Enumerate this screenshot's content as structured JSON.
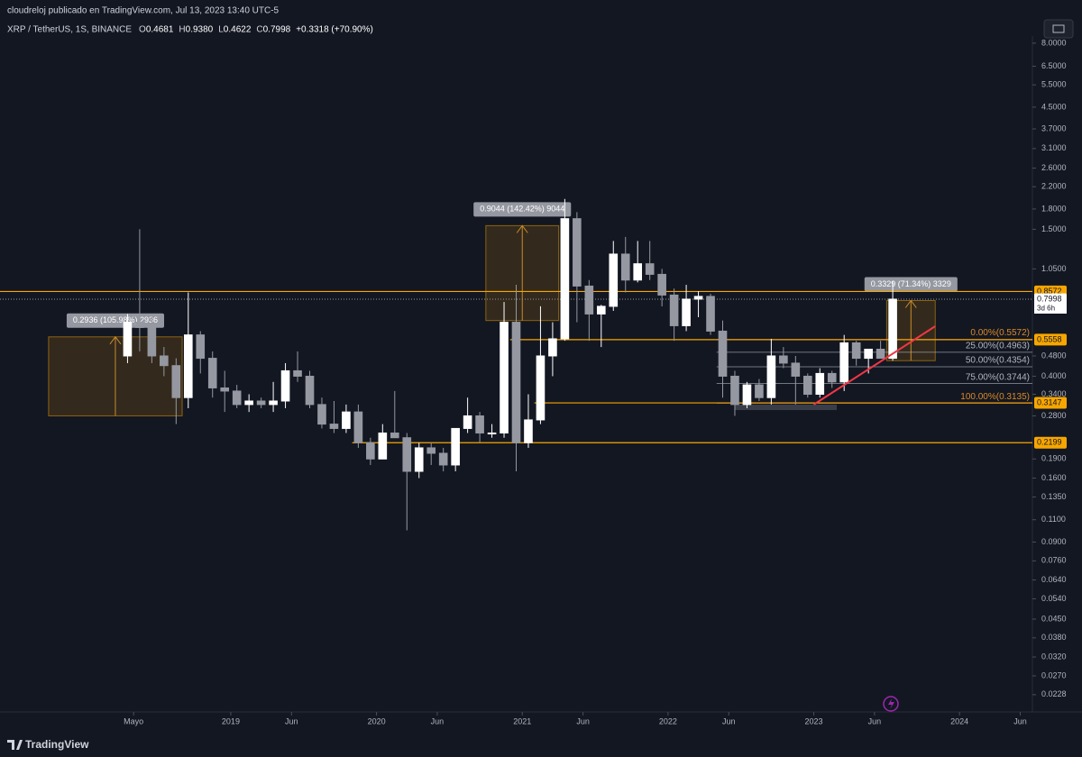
{
  "header": {
    "author_line": "cloudreloj publicado en TradingView.com, Jul 13, 2023 13:40 UTC-5",
    "symbol": "XRP / TetherUS, 1S, BINANCE",
    "ohlc": [
      {
        "label": "O",
        "value": "0.4681"
      },
      {
        "label": "H",
        "value": "0.9380"
      },
      {
        "label": "L",
        "value": "0.4622"
      },
      {
        "label": "C",
        "value": "0.7998"
      }
    ],
    "change": "+0.3318 (+70.90%)"
  },
  "chart_data": {
    "type": "candlestick",
    "log_scale": true,
    "grid": false,
    "up_color": "#ffffff",
    "down_color": "#9598a1",
    "xlim": [
      "2017-06",
      "2024-07"
    ],
    "ylim": [
      0.018,
      8.53
    ],
    "yticks": [
      {
        "value": 8,
        "label": "8.0000"
      },
      {
        "value": 6.5,
        "label": "6.5000"
      },
      {
        "value": 5.5,
        "label": "5.5000"
      },
      {
        "value": 4.5,
        "label": "4.5000"
      },
      {
        "value": 3.7,
        "label": "3.7000"
      },
      {
        "value": 3.1,
        "label": "3.1000"
      },
      {
        "value": 2.6,
        "label": "2.6000"
      },
      {
        "value": 2.2,
        "label": "2.2000"
      },
      {
        "value": 1.8,
        "label": "1.8000"
      },
      {
        "value": 1.5,
        "label": "1.5000"
      },
      {
        "value": 1.05,
        "label": "1.0500"
      },
      {
        "value": 0.48,
        "label": "0.4800"
      },
      {
        "value": 0.4,
        "label": "0.4000"
      },
      {
        "value": 0.34,
        "label": "0.3400"
      },
      {
        "value": 0.28,
        "label": "0.2800"
      },
      {
        "value": 0.19,
        "label": "0.1900"
      },
      {
        "value": 0.16,
        "label": "0.1600"
      },
      {
        "value": 0.135,
        "label": "0.1350"
      },
      {
        "value": 0.11,
        "label": "0.1100"
      },
      {
        "value": 0.09,
        "label": "0.0900"
      },
      {
        "value": 0.076,
        "label": "0.0760"
      },
      {
        "value": 0.064,
        "label": "0.0640"
      },
      {
        "value": 0.054,
        "label": "0.0540"
      },
      {
        "value": 0.045,
        "label": "0.0450"
      },
      {
        "value": 0.038,
        "label": "0.0380"
      },
      {
        "value": 0.032,
        "label": "0.0320"
      },
      {
        "value": 0.027,
        "label": "0.0270"
      },
      {
        "value": 0.0228,
        "label": "0.0228"
      }
    ],
    "xticks": [
      {
        "value": "2018-05",
        "label": "Mayo"
      },
      {
        "value": "2019-01",
        "label": "2019"
      },
      {
        "value": "2019-06",
        "label": "Jun"
      },
      {
        "value": "2020-01",
        "label": "2020"
      },
      {
        "value": "2020-06",
        "label": "Jun"
      },
      {
        "value": "2021-01",
        "label": "2021"
      },
      {
        "value": "2021-06",
        "label": "Jun"
      },
      {
        "value": "2022-01",
        "label": "2022"
      },
      {
        "value": "2022-06",
        "label": "Jun"
      },
      {
        "value": "2023-01",
        "label": "2023"
      },
      {
        "value": "2023-06",
        "label": "Jun"
      },
      {
        "value": "2024-01",
        "label": "2024"
      },
      {
        "value": "2024-06",
        "label": "Jun"
      }
    ],
    "x": [
      "2018-04",
      "2018-05",
      "2018-06",
      "2018-07",
      "2018-08",
      "2018-09",
      "2018-10",
      "2018-11",
      "2018-12",
      "2019-01",
      "2019-02",
      "2019-03",
      "2019-04",
      "2019-05",
      "2019-06",
      "2019-07",
      "2019-08",
      "2019-09",
      "2019-10",
      "2019-11",
      "2019-12",
      "2020-01",
      "2020-02",
      "2020-03",
      "2020-04",
      "2020-05",
      "2020-06",
      "2020-07",
      "2020-08",
      "2020-09",
      "2020-10",
      "2020-11",
      "2020-12",
      "2021-01",
      "2021-02",
      "2021-03",
      "2021-04",
      "2021-05",
      "2021-06",
      "2021-07",
      "2021-08",
      "2021-09",
      "2021-10",
      "2021-11",
      "2021-12",
      "2022-01",
      "2022-02",
      "2022-03",
      "2022-04",
      "2022-05",
      "2022-06",
      "2022-07",
      "2022-08",
      "2022-09",
      "2022-10",
      "2022-11",
      "2022-12",
      "2023-01",
      "2023-02",
      "2023-03",
      "2023-04",
      "2023-05",
      "2023-06",
      "2023-07"
    ],
    "open": [
      0.48,
      0.65,
      0.62,
      0.48,
      0.44,
      0.33,
      0.58,
      0.47,
      0.36,
      0.35,
      0.31,
      0.32,
      0.31,
      0.32,
      0.42,
      0.4,
      0.31,
      0.26,
      0.25,
      0.29,
      0.22,
      0.19,
      0.24,
      0.23,
      0.17,
      0.21,
      0.2,
      0.18,
      0.25,
      0.28,
      0.24,
      0.24,
      0.65,
      0.22,
      0.27,
      0.48,
      0.56,
      1.65,
      0.9,
      0.7,
      0.75,
      1.2,
      0.95,
      1.1,
      1.0,
      0.83,
      0.63,
      0.8,
      0.82,
      0.6,
      0.4,
      0.31,
      0.37,
      0.33,
      0.48,
      0.45,
      0.4,
      0.34,
      0.41,
      0.38,
      0.54,
      0.47,
      0.51,
      0.47
    ],
    "high": [
      0.7,
      1.5,
      0.68,
      0.52,
      0.47,
      0.85,
      0.6,
      0.5,
      0.42,
      0.37,
      0.34,
      0.33,
      0.38,
      0.45,
      0.5,
      0.42,
      0.33,
      0.32,
      0.31,
      0.31,
      0.23,
      0.26,
      0.35,
      0.24,
      0.22,
      0.22,
      0.21,
      0.25,
      0.33,
      0.29,
      0.26,
      0.78,
      0.91,
      0.34,
      0.75,
      0.65,
      1.97,
      1.75,
      0.95,
      0.76,
      1.35,
      1.4,
      1.35,
      1.35,
      1.05,
      0.88,
      0.91,
      0.86,
      0.84,
      0.66,
      0.42,
      0.38,
      0.39,
      0.56,
      0.52,
      0.48,
      0.41,
      0.43,
      0.42,
      0.58,
      0.55,
      0.5,
      0.55,
      0.94
    ],
    "low": [
      0.45,
      0.5,
      0.45,
      0.4,
      0.26,
      0.3,
      0.41,
      0.33,
      0.29,
      0.3,
      0.29,
      0.3,
      0.29,
      0.3,
      0.38,
      0.3,
      0.25,
      0.24,
      0.24,
      0.21,
      0.18,
      0.19,
      0.23,
      0.1,
      0.16,
      0.18,
      0.17,
      0.17,
      0.24,
      0.22,
      0.23,
      0.23,
      0.17,
      0.21,
      0.26,
      0.4,
      0.55,
      0.65,
      0.55,
      0.52,
      0.72,
      0.85,
      0.93,
      0.95,
      0.75,
      0.55,
      0.6,
      0.68,
      0.58,
      0.33,
      0.28,
      0.3,
      0.32,
      0.31,
      0.43,
      0.31,
      0.33,
      0.33,
      0.36,
      0.35,
      0.44,
      0.41,
      0.47,
      0.46
    ],
    "close": [
      0.65,
      0.62,
      0.48,
      0.44,
      0.33,
      0.58,
      0.47,
      0.36,
      0.35,
      0.31,
      0.32,
      0.31,
      0.32,
      0.42,
      0.4,
      0.31,
      0.26,
      0.25,
      0.29,
      0.22,
      0.19,
      0.24,
      0.23,
      0.17,
      0.21,
      0.2,
      0.18,
      0.25,
      0.28,
      0.24,
      0.24,
      0.65,
      0.22,
      0.27,
      0.48,
      0.56,
      1.65,
      0.9,
      0.7,
      0.75,
      1.2,
      0.95,
      1.1,
      1.0,
      0.83,
      0.63,
      0.8,
      0.82,
      0.6,
      0.4,
      0.31,
      0.37,
      0.33,
      0.48,
      0.45,
      0.4,
      0.34,
      0.41,
      0.38,
      0.54,
      0.47,
      0.51,
      0.47,
      0.8
    ],
    "price_lines": [
      {
        "value": 0.8572,
        "start": "2017-06",
        "color": "#f7a600"
      },
      {
        "value": 0.5558,
        "start": "2020-12",
        "color": "#f7a600"
      },
      {
        "value": 0.3147,
        "start": "2021-02",
        "color": "#f7a600"
      },
      {
        "value": 0.2199,
        "start": "2019-11",
        "color": "#f7a600"
      }
    ],
    "last_price": {
      "value": 0.7998,
      "countdown": "3d 6h"
    },
    "fib": {
      "start": "2022-05",
      "levels": [
        {
          "value": 0.5572,
          "label": "0.00%(0.5572)",
          "color": "#d98b29"
        },
        {
          "value": 0.4963,
          "label": "25.00%(0.4963)",
          "color": "#b2b5be"
        },
        {
          "value": 0.4354,
          "label": "50.00%(0.4354)",
          "color": "#b2b5be"
        },
        {
          "value": 0.3744,
          "label": "75.00%(0.3744)",
          "color": "#b2b5be"
        },
        {
          "value": 0.3135,
          "label": "100.00%(0.3135)",
          "color": "#d98b29"
        }
      ]
    },
    "measures": [
      {
        "label": "0.2936 (105.98%) 2936",
        "from": 0.28,
        "to": 0.57,
        "start": "2017-10",
        "end": "2018-09"
      },
      {
        "label": "0.9044 (142.42%) 9044",
        "from": 0.66,
        "to": 1.55,
        "start": "2020-10",
        "end": "2021-04"
      },
      {
        "label": "0.3329 (71.34%) 3329",
        "from": 0.46,
        "to": 0.79,
        "start": "2023-07",
        "end": "2023-11"
      }
    ],
    "trendline": {
      "from": {
        "x": "2023-01",
        "y": 0.31
      },
      "to": {
        "x": "2023-11",
        "y": 0.627
      },
      "color": "#f23645"
    }
  },
  "footer": {
    "brand": "TradingView"
  }
}
